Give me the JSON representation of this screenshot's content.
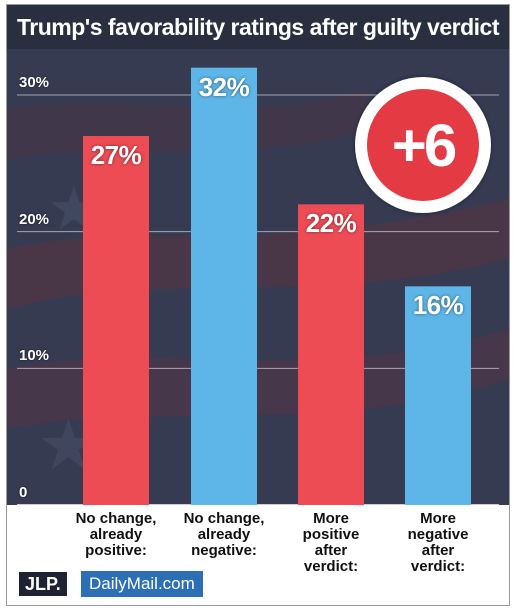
{
  "title": "Trump's favorability ratings after guilty verdict",
  "badge": {
    "text": "+6"
  },
  "colors": {
    "red": "#ee4c55",
    "blue": "#5eb6e8",
    "badge": "#e33a44"
  },
  "logos": {
    "jlp": "JLP.",
    "daily_mail": "DailyMail.com"
  },
  "chart_data": {
    "type": "bar",
    "title": "Trump's favorability ratings after guilty verdict",
    "categories": [
      "No change,\nalready\npositive:",
      "No change,\nalready\nnegative:",
      "More\npositive\nafter\nverdict:",
      "More\nnegative\nafter\nverdict:"
    ],
    "values": [
      27,
      32,
      22,
      16
    ],
    "value_labels": [
      "27%",
      "32%",
      "22%",
      "16%"
    ],
    "bar_colors": [
      "#ee4c55",
      "#5eb6e8",
      "#ee4c55",
      "#5eb6e8"
    ],
    "yticks": [
      0,
      10,
      20,
      30
    ],
    "ytick_labels": [
      "0",
      "10%",
      "20%",
      "30%"
    ],
    "ylim": [
      0,
      32
    ],
    "xlabel": "",
    "ylabel": "",
    "grid": true,
    "legend": "none"
  }
}
